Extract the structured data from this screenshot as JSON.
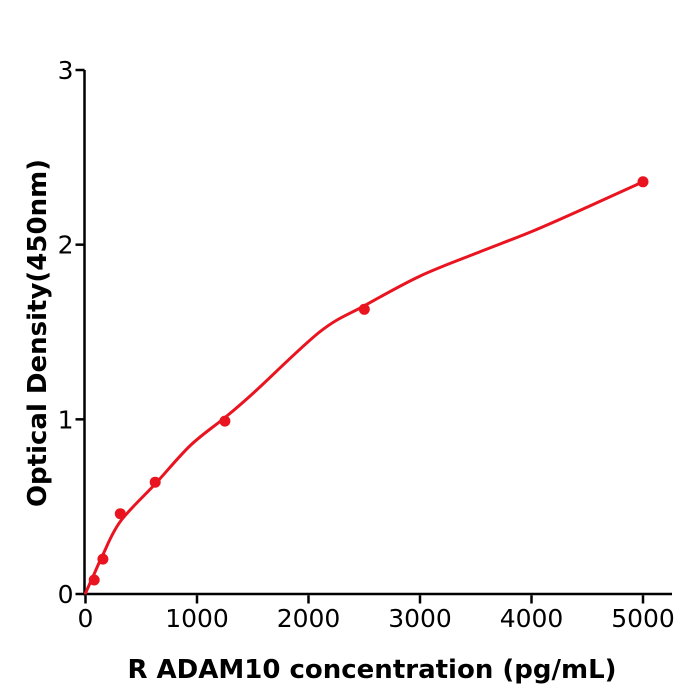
{
  "chart_data": {
    "type": "scatter",
    "title": "",
    "xlabel": "R  ADAM10 concentration (pg/mL)",
    "ylabel": "Optical Density(450nm)",
    "xlim": [
      0,
      5260
    ],
    "ylim": [
      0,
      3
    ],
    "x_ticks": [
      0,
      1000,
      2000,
      3000,
      4000,
      5000
    ],
    "y_ticks": [
      0,
      1,
      2,
      3
    ],
    "grid": false,
    "legend": "none",
    "marker": "circle",
    "series": [
      {
        "name": "standard-curve-points",
        "x": [
          78.125,
          156.25,
          312.5,
          625,
          1250,
          2500,
          5000
        ],
        "y": [
          0.08,
          0.2,
          0.46,
          0.64,
          0.99,
          1.63,
          2.36
        ]
      }
    ],
    "fit_curve": {
      "name": "fitted-standard-curve",
      "x": [
        0,
        78,
        156,
        312,
        625,
        940,
        1250,
        1505,
        2100,
        2500,
        3000,
        3500,
        4000,
        4500,
        5000
      ],
      "y": [
        0.005,
        0.115,
        0.225,
        0.415,
        0.63,
        0.85,
        1.01,
        1.15,
        1.5,
        1.65,
        1.82,
        1.95,
        2.075,
        2.215,
        2.36
      ]
    },
    "colors": {
      "series": "#e9141f",
      "axis": "#000000",
      "text": "#000000",
      "background": "#ffffff"
    }
  }
}
